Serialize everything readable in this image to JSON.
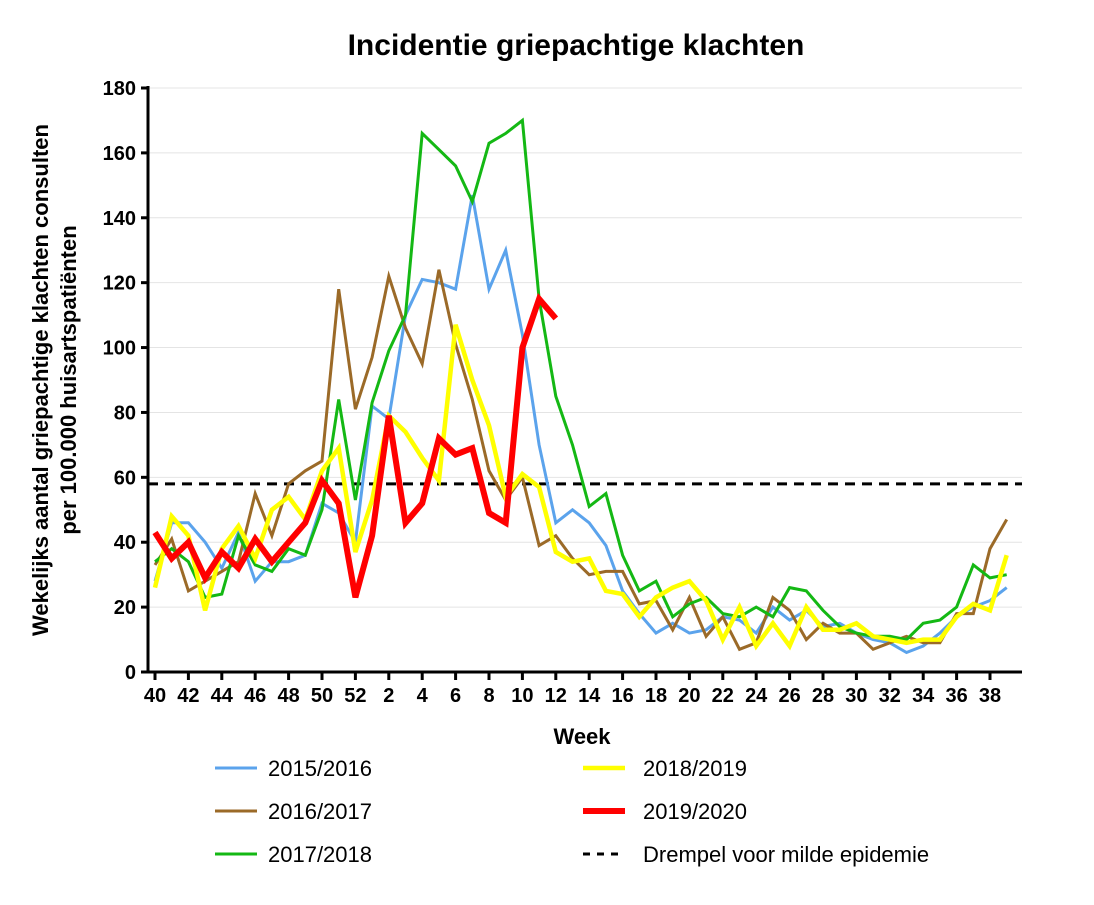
{
  "chart_data": {
    "type": "line",
    "title": "Incidentie griepachtige klachten",
    "xlabel": "Week",
    "ylabel_line1": "Wekelijks aantal griepachtige klachten consulten",
    "ylabel_line2": "per 100.000 huisartspatiënten",
    "ylim": [
      0,
      180
    ],
    "yticks": [
      0,
      20,
      40,
      60,
      80,
      100,
      120,
      140,
      160,
      180
    ],
    "weeks": [
      40,
      41,
      42,
      43,
      44,
      45,
      46,
      47,
      48,
      49,
      50,
      51,
      52,
      1,
      2,
      3,
      4,
      5,
      6,
      7,
      8,
      9,
      10,
      11,
      12,
      13,
      14,
      15,
      16,
      17,
      18,
      19,
      20,
      21,
      22,
      23,
      24,
      25,
      26,
      27,
      28,
      29,
      30,
      31,
      32,
      33,
      34,
      35,
      36,
      37,
      38,
      39
    ],
    "xtick_labels": [
      "40",
      "42",
      "44",
      "46",
      "48",
      "50",
      "52",
      "2",
      "4",
      "6",
      "8",
      "10",
      "12",
      "14",
      "16",
      "18",
      "20",
      "22",
      "24",
      "26",
      "28",
      "30",
      "32",
      "34",
      "36",
      "38"
    ],
    "grid": "horizontal",
    "legend_placement": "bottom",
    "series": [
      {
        "name": "2015/2016",
        "color": "#5ba3ec",
        "values": [
          28,
          46,
          46,
          40,
          32,
          43,
          28,
          34,
          34,
          36,
          52,
          49,
          40,
          82,
          78,
          110,
          121,
          120,
          118,
          147,
          118,
          130,
          104,
          70,
          46,
          50,
          46,
          39,
          25,
          18,
          12,
          15,
          12,
          13,
          17,
          16,
          12,
          20,
          16,
          19,
          14,
          15,
          12,
          10,
          9,
          6,
          8,
          12,
          17,
          20,
          22,
          26
        ]
      },
      {
        "name": "2016/2017",
        "color": "#9b6a28",
        "values": [
          33,
          41,
          25,
          28,
          31,
          34,
          55,
          42,
          58,
          62,
          65,
          118,
          81,
          97,
          122,
          106,
          95,
          124,
          101,
          84,
          62,
          53,
          60,
          39,
          42,
          35,
          30,
          31,
          31,
          21,
          22,
          13,
          23,
          11,
          17,
          7,
          9,
          23,
          19,
          10,
          15,
          12,
          12,
          7,
          9,
          11,
          9,
          9,
          18,
          18,
          38,
          47
        ]
      },
      {
        "name": "2017/2018",
        "color": "#14b814",
        "values": [
          34,
          38,
          34,
          23,
          24,
          42,
          33,
          31,
          38,
          36,
          50,
          84,
          53,
          83,
          99,
          110,
          166,
          161,
          156,
          145,
          163,
          166,
          170,
          115,
          85,
          70,
          51,
          55,
          36,
          25,
          28,
          17,
          21,
          23,
          18,
          17,
          20,
          17,
          26,
          25,
          19,
          14,
          12,
          11,
          11,
          10,
          15,
          16,
          20,
          33,
          29,
          30
        ]
      },
      {
        "name": "2018/2019",
        "color": "#ffff00",
        "values": [
          26,
          48,
          42,
          19,
          38,
          45,
          35,
          50,
          54,
          47,
          62,
          69,
          37,
          53,
          79,
          74,
          66,
          59,
          107,
          90,
          76,
          54,
          61,
          57,
          37,
          34,
          35,
          25,
          24,
          17,
          23,
          26,
          28,
          22,
          10,
          20,
          8,
          15,
          8,
          20,
          13,
          13,
          15,
          11,
          10,
          9,
          10,
          10,
          17,
          21,
          19,
          36
        ]
      },
      {
        "name": "2019/2020",
        "color": "#ff0000",
        "values": [
          43,
          35,
          40,
          29,
          37,
          32,
          41,
          34,
          40,
          46,
          59,
          52,
          23,
          42,
          79,
          46,
          52,
          72,
          67,
          69,
          49,
          46,
          100,
          115,
          109
        ]
      }
    ],
    "threshold": {
      "name": "Drempel voor milde epidemie",
      "value": 58,
      "color": "#000000"
    }
  }
}
